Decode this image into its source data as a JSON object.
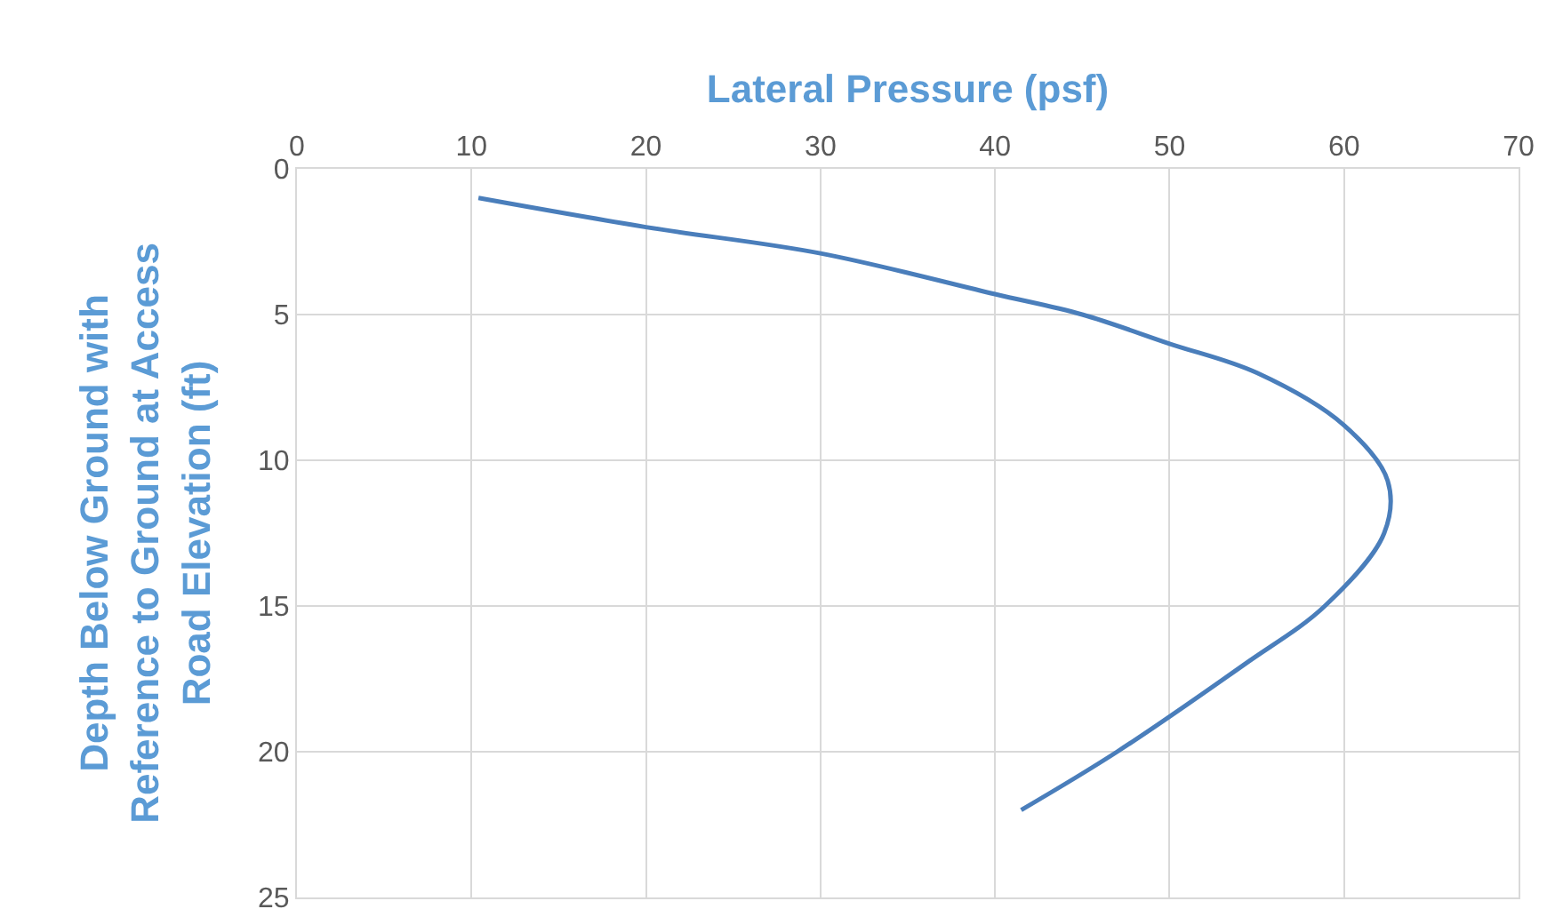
{
  "chart_data": {
    "type": "line",
    "xlabel": "Lateral Pressure (psf)",
    "ylabel": "Depth Below Ground with\nReference to Ground at Access\nRoad Elevation (ft)",
    "x": [
      10.4,
      20,
      30,
      40,
      45,
      50,
      55,
      60,
      62.5,
      62.3,
      58.9,
      54.3,
      47,
      41.5
    ],
    "series": [
      {
        "color": "#4a7ebb",
        "values": [
          1,
          2,
          2.9,
          4.3,
          5,
          6,
          7,
          8.8,
          10.7,
          12.5,
          15,
          17,
          20,
          22
        ]
      }
    ],
    "xlim": [
      0,
      70
    ],
    "xticks": [
      0,
      10,
      20,
      30,
      40,
      50,
      60,
      70
    ],
    "ylim": [
      25,
      0
    ],
    "yticks": [
      0,
      5,
      10,
      15,
      20,
      25
    ],
    "grid": true,
    "marker": "none",
    "line_style": "solid"
  }
}
